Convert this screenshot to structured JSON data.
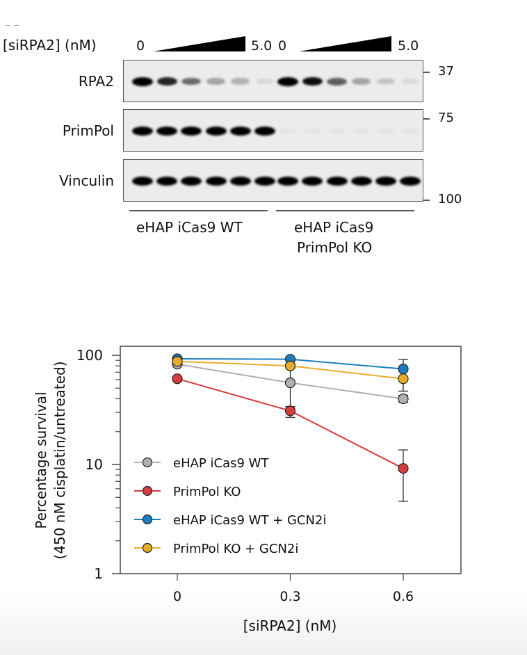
{
  "blot": {
    "conc_label": "[siRPA2] (nM)",
    "lanes_per_group": 6,
    "groups": [
      {
        "label_line1": "eHAP iCas9 WT",
        "label_line2": "",
        "low": "0",
        "high": "5.0"
      },
      {
        "label_line1": "eHAP iCas9",
        "label_line2": "PrimPol KO",
        "low": "0",
        "high": "5.0"
      }
    ],
    "rows": [
      {
        "name": "RPA2",
        "mw": "37",
        "intensities": [
          1.0,
          0.85,
          0.55,
          0.3,
          0.25,
          0.08,
          1.0,
          0.95,
          0.6,
          0.3,
          0.18,
          0.08
        ]
      },
      {
        "name": "PrimPol",
        "mw": "75",
        "intensities": [
          1.0,
          1.0,
          1.0,
          1.0,
          1.0,
          1.0,
          0.03,
          0.03,
          0.03,
          0.02,
          0.02,
          0.02
        ]
      },
      {
        "name": "Vinculin",
        "mw": "100",
        "intensities": [
          1.0,
          1.0,
          1.0,
          1.0,
          1.0,
          1.0,
          1.0,
          1.0,
          1.0,
          1.0,
          1.0,
          1.0
        ]
      }
    ]
  },
  "chart_data": {
    "type": "line",
    "title": "",
    "xlabel": "[siRPA2] (nM)",
    "ylabel_line1": "Percentage survival",
    "ylabel_line2": "(450 nM cisplatin/untreated)",
    "yscale": "log",
    "ylim": [
      1,
      130
    ],
    "xlim": [
      -0.15,
      0.75
    ],
    "x": [
      0,
      0.3,
      0.6
    ],
    "xtick_labels": [
      "0",
      "0.3",
      "0.6"
    ],
    "ytick_labels": [
      "1",
      "10",
      "100"
    ],
    "ytick_values": [
      1,
      10,
      100
    ],
    "legend_position": "bottom-left",
    "series": [
      {
        "name": "eHAP iCas9 WT",
        "color": "#b0b0b2",
        "values": [
          83,
          56,
          40
        ],
        "err_low": [
          80,
          33,
          37
        ],
        "err_high": [
          86,
          80,
          43
        ]
      },
      {
        "name": "PrimPol KO",
        "color": "#d63b3e",
        "values": [
          61,
          31,
          9.2
        ],
        "err_low": [
          59,
          27,
          4.6
        ],
        "err_high": [
          63,
          34,
          13.6
        ]
      },
      {
        "name": "eHAP iCas9 WT + GCN2i",
        "color": "#1a7fc1",
        "values": [
          93,
          92,
          75
        ],
        "err_low": [
          91,
          90,
          47
        ],
        "err_high": [
          95,
          94,
          92
        ]
      },
      {
        "name": "PrimPol KO + GCN2i",
        "color": "#e8ac2c",
        "values": [
          88,
          80,
          61
        ],
        "err_low": [
          86,
          76,
          47
        ],
        "err_high": [
          90,
          84,
          75
        ]
      }
    ]
  }
}
